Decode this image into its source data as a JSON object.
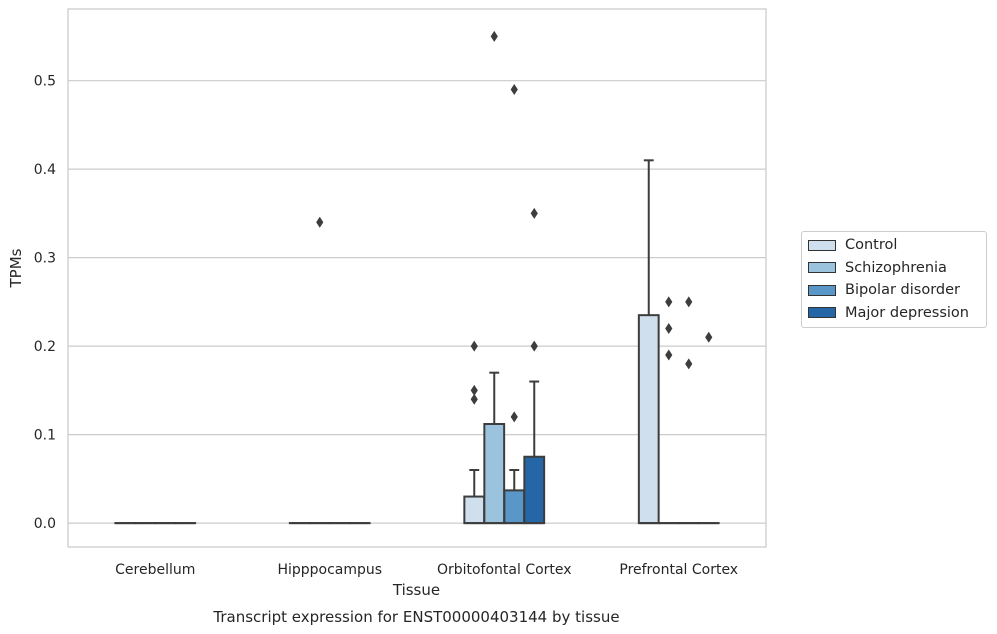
{
  "chart_data": {
    "type": "box",
    "title": "Transcript expression for ENST00000403144 by tissue",
    "xlabel": "Tissue",
    "ylabel": "TPMs",
    "ylim": [
      -0.027,
      0.581
    ],
    "yticks": [
      "0.0",
      "0.1",
      "0.2",
      "0.3",
      "0.4",
      "0.5"
    ],
    "ytick_values": [
      0,
      0.1,
      0.2,
      0.3,
      0.4,
      0.5
    ],
    "categories": [
      "Cerebellum",
      "Hipppocampus",
      "Orbitofontal Cortex",
      "Prefrontal Cortex"
    ],
    "grid": true,
    "legend_position": "right",
    "series": [
      {
        "name": "Control",
        "color": "#d0dfee",
        "boxes": [
          {
            "category": "Cerebellum",
            "whisker_low": 0,
            "q1": 0,
            "median": 0,
            "q3": 0,
            "whisker_high": 0,
            "outliers": []
          },
          {
            "category": "Hipppocampus",
            "whisker_low": 0,
            "q1": 0,
            "median": 0,
            "q3": 0,
            "whisker_high": 0,
            "outliers": []
          },
          {
            "category": "Orbitofontal Cortex",
            "whisker_low": 0,
            "q1": 0,
            "median": 0,
            "q3": 0.03,
            "whisker_high": 0.06,
            "outliers": [
              0.14,
              0.15,
              0.2
            ]
          },
          {
            "category": "Prefrontal Cortex",
            "whisker_low": 0,
            "q1": 0,
            "median": 0,
            "q3": 0.235,
            "whisker_high": 0.41,
            "outliers": []
          }
        ]
      },
      {
        "name": "Schizophrenia",
        "color": "#9bc3dd",
        "boxes": [
          {
            "category": "Cerebellum",
            "whisker_low": 0,
            "q1": 0,
            "median": 0,
            "q3": 0,
            "whisker_high": 0,
            "outliers": []
          },
          {
            "category": "Hipppocampus",
            "whisker_low": 0,
            "q1": 0,
            "median": 0,
            "q3": 0,
            "whisker_high": 0,
            "outliers": [
              0.34
            ]
          },
          {
            "category": "Orbitofontal Cortex",
            "whisker_low": 0,
            "q1": 0,
            "median": 0,
            "q3": 0.112,
            "whisker_high": 0.17,
            "outliers": [
              0.55
            ]
          },
          {
            "category": "Prefrontal Cortex",
            "whisker_low": 0,
            "q1": 0,
            "median": 0,
            "q3": 0,
            "whisker_high": 0,
            "outliers": [
              0.19,
              0.22,
              0.25
            ]
          }
        ]
      },
      {
        "name": "Bipolar disorder",
        "color": "#5997c8",
        "boxes": [
          {
            "category": "Cerebellum",
            "whisker_low": 0,
            "q1": 0,
            "median": 0,
            "q3": 0,
            "whisker_high": 0,
            "outliers": []
          },
          {
            "category": "Hipppocampus",
            "whisker_low": 0,
            "q1": 0,
            "median": 0,
            "q3": 0,
            "whisker_high": 0,
            "outliers": []
          },
          {
            "category": "Orbitofontal Cortex",
            "whisker_low": 0,
            "q1": 0,
            "median": 0,
            "q3": 0.037,
            "whisker_high": 0.06,
            "outliers": [
              0.12,
              0.49
            ]
          },
          {
            "category": "Prefrontal Cortex",
            "whisker_low": 0,
            "q1": 0,
            "median": 0,
            "q3": 0,
            "whisker_high": 0,
            "outliers": [
              0.18,
              0.25
            ]
          }
        ]
      },
      {
        "name": "Major depression",
        "color": "#2566a6",
        "boxes": [
          {
            "category": "Cerebellum",
            "whisker_low": 0,
            "q1": 0,
            "median": 0,
            "q3": 0,
            "whisker_high": 0,
            "outliers": []
          },
          {
            "category": "Hipppocampus",
            "whisker_low": 0,
            "q1": 0,
            "median": 0,
            "q3": 0,
            "whisker_high": 0,
            "outliers": []
          },
          {
            "category": "Orbitofontal Cortex",
            "whisker_low": 0,
            "q1": 0,
            "median": 0,
            "q3": 0.075,
            "whisker_high": 0.16,
            "outliers": [
              0.2,
              0.35
            ]
          },
          {
            "category": "Prefrontal Cortex",
            "whisker_low": 0,
            "q1": 0,
            "median": 0,
            "q3": 0,
            "whisker_high": 0,
            "outliers": [
              0.21
            ]
          }
        ]
      }
    ]
  }
}
